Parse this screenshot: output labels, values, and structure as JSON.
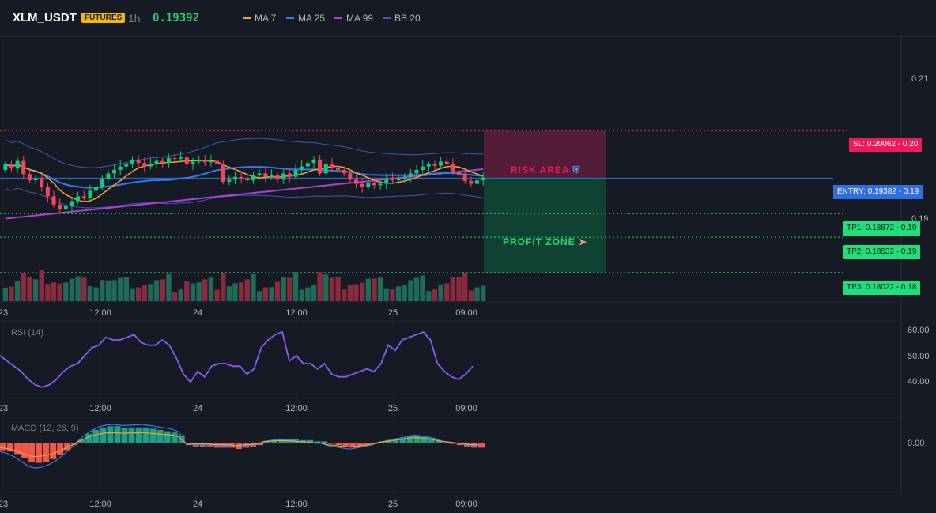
{
  "header": {
    "symbol": "XLM_USDT",
    "badge": "FUTURES",
    "timeframe": "1h",
    "price": "0.19392",
    "indicators": [
      {
        "label": "MA 7",
        "color": "#f5a623"
      },
      {
        "label": "MA 25",
        "color": "#2f7bf5"
      },
      {
        "label": "MA 99",
        "color": "#b03fd0"
      },
      {
        "label": "BB 20",
        "color": "#3b5bb5"
      }
    ]
  },
  "price_axis": {
    "ticks": [
      "0.21",
      "0.19"
    ]
  },
  "levels": {
    "sl": "SL: 0.20062 - 0.20",
    "entry": "ENTRY: 0.19382 - 0.19",
    "tp1": "TP1: 0.18872 - 0.19",
    "tp2": "TP2: 0.18532 - 0.19",
    "tp3": "TP3: 0.18022 - 0.18"
  },
  "zones": {
    "risk": "RISK AREA",
    "profit": "PROFIT ZONE"
  },
  "time_axis": [
    "23",
    "12:00",
    "24",
    "12:00",
    "25",
    "09:00"
  ],
  "rsi": {
    "label": "RSI (14)",
    "ticks": [
      "60.00",
      "50.00",
      "40.00"
    ]
  },
  "macd": {
    "label": "MACD (12, 26, 9)",
    "ticks": [
      "0.00"
    ]
  },
  "colors": {
    "up": "#0ecb81",
    "down": "#f6465d",
    "vol_up": "#1e6b5a",
    "vol_down": "#8a2a3c",
    "entry": "#2f6fe0",
    "sl": "#f0195a",
    "tp": "#1ee07a"
  },
  "chart_data": {
    "type": "candlestick",
    "price_range": [
      0.176,
      0.214
    ],
    "closes": [
      0.1958,
      0.1952,
      0.1963,
      0.1944,
      0.1935,
      0.1938,
      0.1925,
      0.1912,
      0.19,
      0.1893,
      0.1898,
      0.1905,
      0.1912,
      0.191,
      0.192,
      0.1925,
      0.1937,
      0.1945,
      0.195,
      0.1955,
      0.1958,
      0.1965,
      0.196,
      0.1955,
      0.1958,
      0.1963,
      0.196,
      0.1967,
      0.1966,
      0.1968,
      0.1958,
      0.1962,
      0.1964,
      0.1961,
      0.1963,
      0.1958,
      0.1933,
      0.1936,
      0.194,
      0.1938,
      0.1935,
      0.1942,
      0.1945,
      0.194,
      0.1942,
      0.1936,
      0.1945,
      0.194,
      0.195,
      0.1955,
      0.196,
      0.1965,
      0.1945,
      0.1958,
      0.1953,
      0.195,
      0.1945,
      0.1936,
      0.193,
      0.1925,
      0.1932,
      0.1928,
      0.193,
      0.1937,
      0.1935,
      0.1938,
      0.194,
      0.1945,
      0.195,
      0.1955,
      0.1958,
      0.1956,
      0.1962,
      0.1958,
      0.1948,
      0.1942,
      0.1934,
      0.193,
      0.1935,
      0.1939
    ],
    "rsi_range": [
      35,
      62
    ],
    "rsi": [
      50,
      48,
      46,
      44,
      41,
      39,
      38,
      39,
      41,
      44,
      46,
      47,
      50,
      53,
      54,
      57,
      56,
      56,
      57,
      58,
      55,
      54,
      54,
      56,
      54,
      49,
      43,
      40,
      44,
      42,
      46,
      47,
      47,
      46,
      46,
      43,
      45,
      53,
      56,
      58,
      59,
      48,
      50,
      47,
      47,
      45,
      47,
      43,
      42,
      42,
      43,
      44,
      45,
      44,
      47,
      54,
      52,
      56,
      57,
      58,
      59,
      56,
      47,
      44,
      42,
      41,
      43,
      46
    ],
    "macd_values": [
      -0.6,
      -0.7,
      -0.9,
      -1.2,
      -1.5,
      -1.6,
      -1.5,
      -1.3,
      -1.0,
      -0.6,
      -0.2,
      0.3,
      0.7,
      1.0,
      1.2,
      1.3,
      1.3,
      1.2,
      1.2,
      1.2,
      1.2,
      1.1,
      1.0,
      0.9,
      0.8,
      0.6,
      -0.2,
      -0.3,
      -0.3,
      -0.3,
      -0.4,
      -0.4,
      -0.4,
      -0.5,
      -0.4,
      -0.3,
      -0.2,
      0.1,
      0.2,
      0.3,
      0.3,
      0.3,
      0.2,
      0.2,
      0.1,
      0.1,
      -0.1,
      -0.2,
      -0.3,
      -0.4,
      -0.3,
      -0.2,
      -0.1,
      0.1,
      0.2,
      0.3,
      0.4,
      0.5,
      0.6,
      0.5,
      0.4,
      0.2,
      0.0,
      -0.1,
      -0.2,
      -0.3,
      -0.4,
      -0.4
    ]
  }
}
